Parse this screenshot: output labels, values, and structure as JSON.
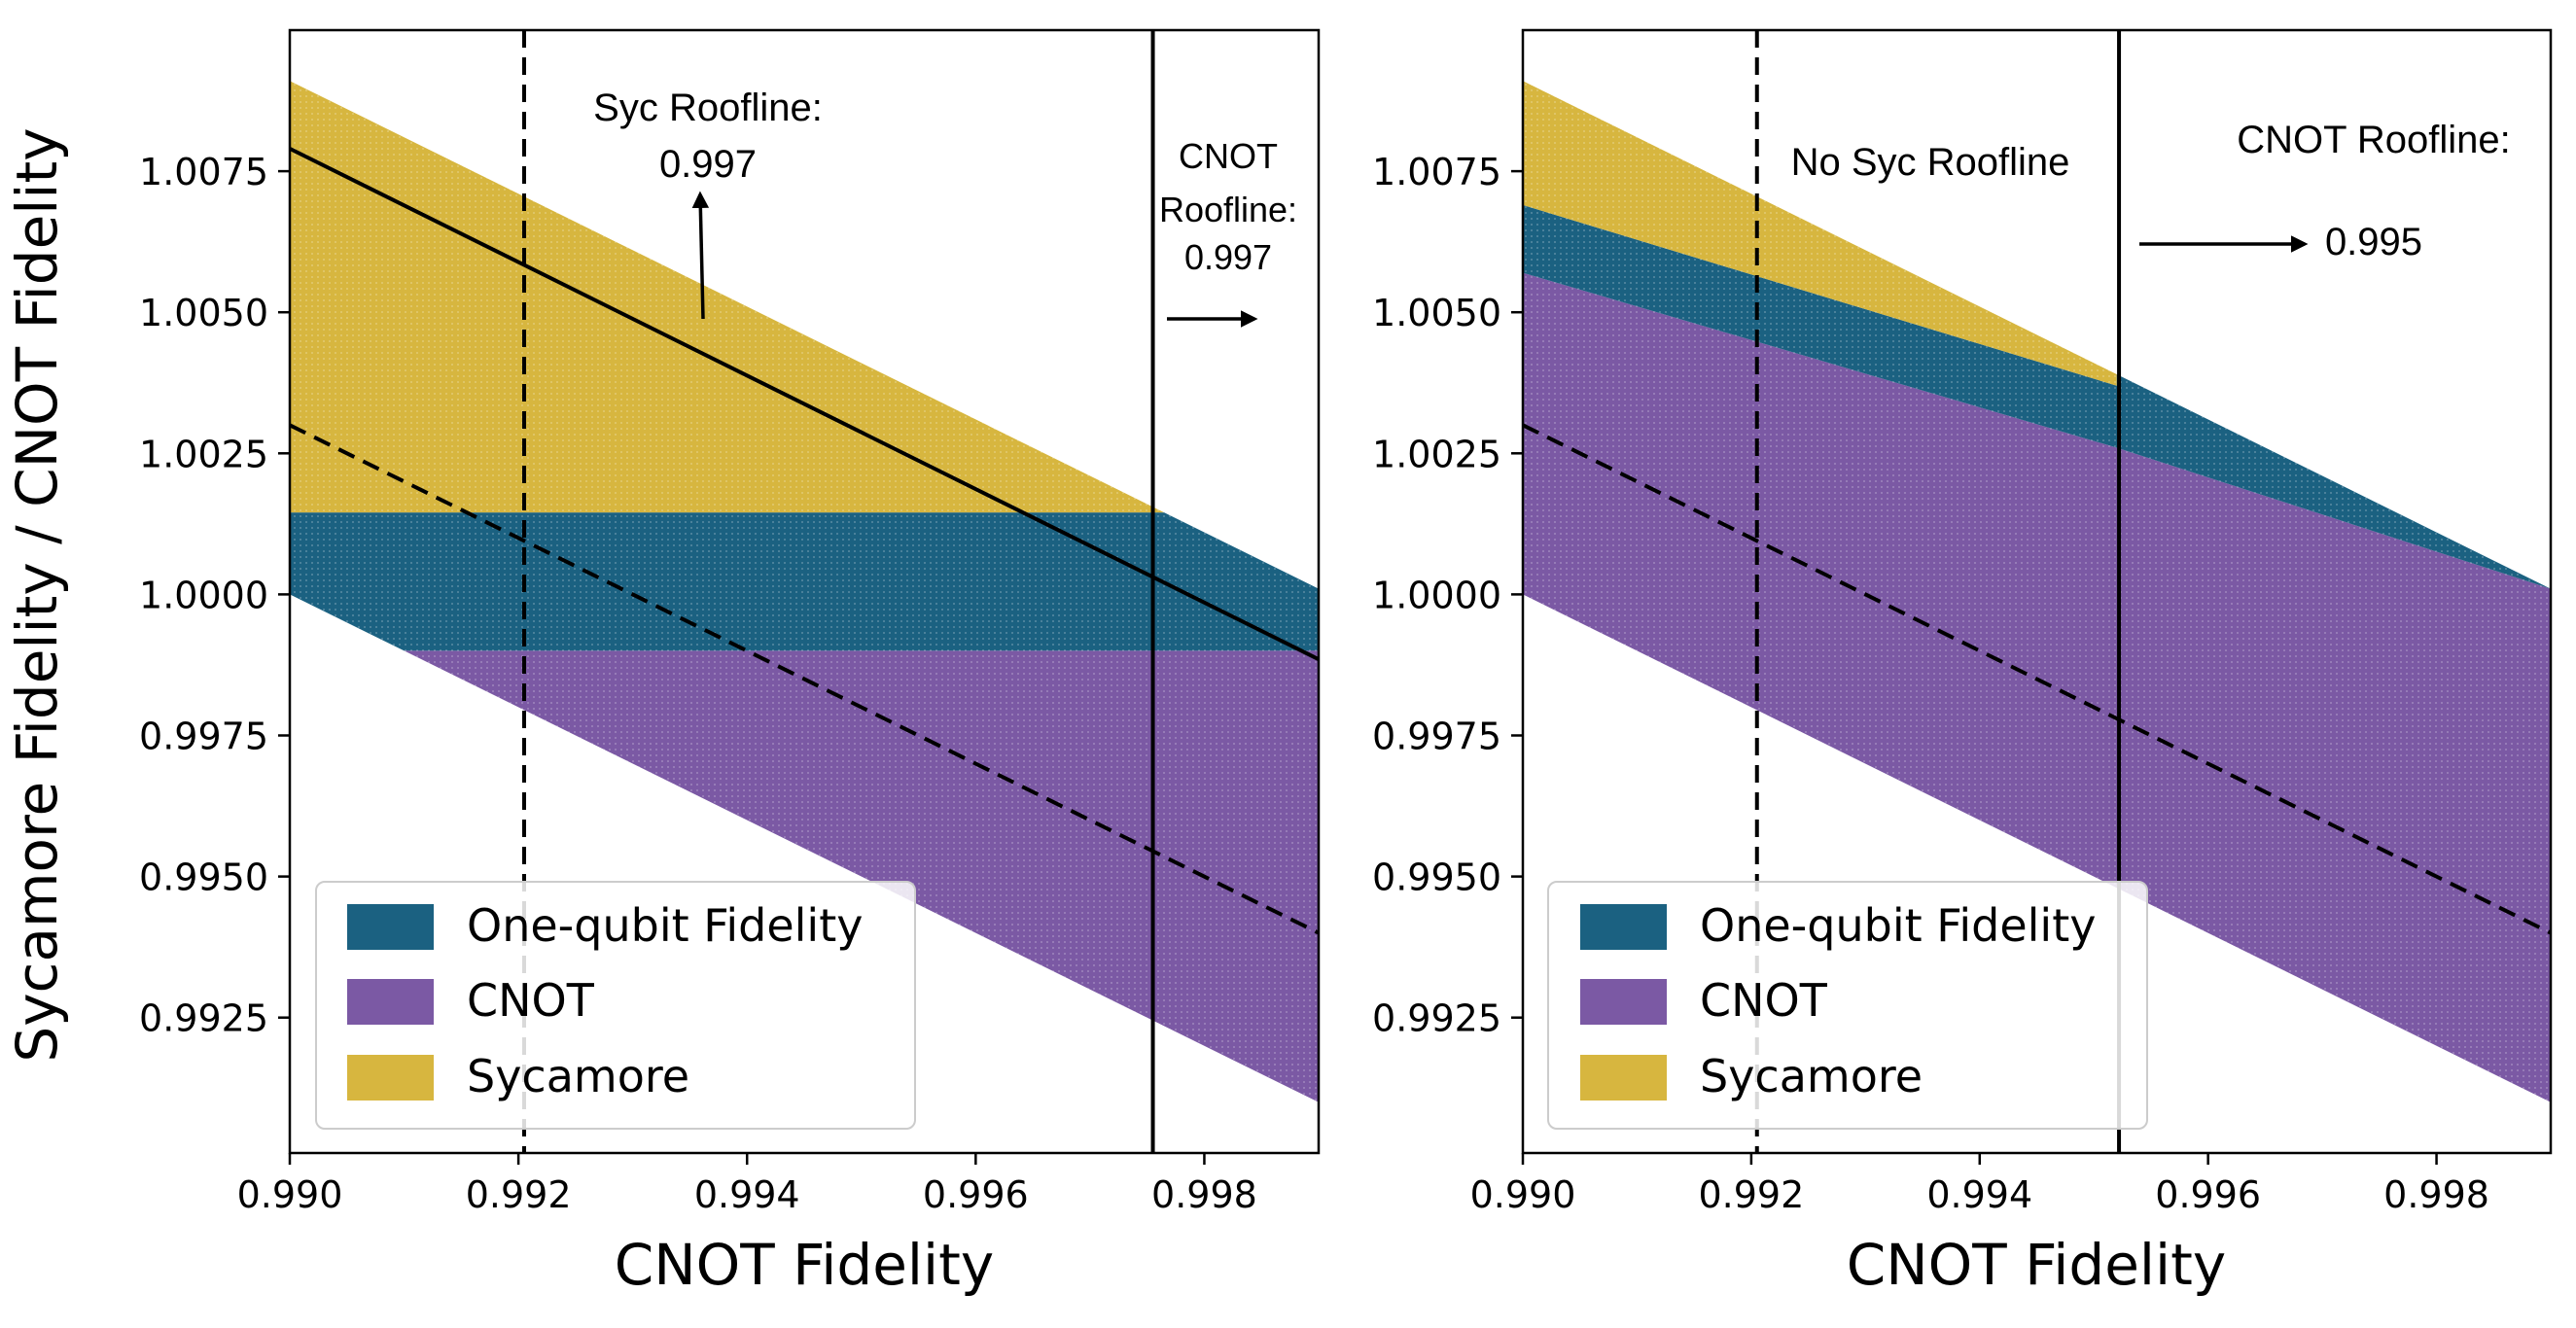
{
  "figure": {
    "ylabel": "Sycamore Fidelity / CNOT Fidelity",
    "colors": {
      "one_qubit": "#1b6181",
      "cnot": "#7b59a4",
      "sycamore": "#d7b63f"
    }
  },
  "chart_data": [
    {
      "type": "area",
      "panel": "left",
      "xlabel": "CNOT Fidelity",
      "ylabel": "Sycamore Fidelity / CNOT Fidelity",
      "xlim": [
        0.99,
        0.999
      ],
      "ylim": [
        0.9901,
        1.01
      ],
      "xticks": [
        "0.990",
        "0.992",
        "0.994",
        "0.996",
        "0.998"
      ],
      "xtick_values": [
        0.99,
        0.992,
        0.994,
        0.996,
        0.998
      ],
      "yticks": [
        "0.9925",
        "0.9950",
        "0.9975",
        "1.0000",
        "1.0025",
        "1.0050",
        "1.0075"
      ],
      "ytick_values": [
        0.9925,
        0.995,
        0.9975,
        1.0,
        1.0025,
        1.005,
        1.0075
      ],
      "band": {
        "lower_at_xmin": 1.0,
        "lower_at_xmax": 0.991,
        "upper_at_xmin": 1.0091,
        "upper_at_xmax": 1.0001
      },
      "regions": {
        "cnot_below": 0.999,
        "sycamore_above": 1.00145
      },
      "lines": [
        {
          "style": "solid",
          "x": [
            0.99,
            0.999
          ],
          "y": [
            1.0079,
            0.99885
          ]
        },
        {
          "style": "dashed",
          "x": [
            0.99,
            0.999
          ],
          "y": [
            1.003,
            0.994
          ]
        }
      ],
      "vlines": [
        {
          "style": "dashed",
          "x": 0.99205
        },
        {
          "style": "solid",
          "x": 0.99755
        }
      ],
      "legend": {
        "position": "lower-left",
        "entries": [
          {
            "label": "One-qubit Fidelity",
            "color": "#1b6181"
          },
          {
            "label": "CNOT",
            "color": "#7b59a4"
          },
          {
            "label": "Sycamore",
            "color": "#d7b63f"
          }
        ]
      },
      "annotations": [
        {
          "lines": [
            "Syc Roofline:",
            "0.997"
          ],
          "arrow": "up"
        },
        {
          "lines": [
            "CNOT",
            "Roofline:",
            "0.997"
          ],
          "arrow": "right"
        }
      ]
    },
    {
      "type": "area",
      "panel": "right",
      "xlabel": "CNOT Fidelity",
      "ylabel": "",
      "xlim": [
        0.99,
        0.999
      ],
      "ylim": [
        0.9901,
        1.01
      ],
      "xticks": [
        "0.990",
        "0.992",
        "0.994",
        "0.996",
        "0.998"
      ],
      "xtick_values": [
        0.99,
        0.992,
        0.994,
        0.996,
        0.998
      ],
      "yticks": [
        "0.9925",
        "0.9950",
        "0.9975",
        "1.0000",
        "1.0025",
        "1.0050",
        "1.0075"
      ],
      "ytick_values": [
        0.9925,
        0.995,
        0.9975,
        1.0,
        1.0025,
        1.005,
        1.0075
      ],
      "band": {
        "lower_at_xmin": 1.0,
        "lower_at_xmax": 0.991,
        "upper_at_xmin": 1.0091,
        "upper_at_xmax": 1.0001
      },
      "boundaries": {
        "one_qubit_lower": {
          "x": [
            0.99,
            0.9952,
            0.999
          ],
          "y": [
            1.0057,
            1.0026,
            1.0001
          ]
        },
        "sycamore_lower": {
          "x": [
            0.99,
            0.9952
          ],
          "y": [
            1.0069,
            1.0037
          ]
        }
      },
      "lines": [
        {
          "style": "dashed",
          "x": [
            0.99,
            0.999
          ],
          "y": [
            1.003,
            0.994
          ]
        }
      ],
      "vlines": [
        {
          "style": "dashed",
          "x": 0.99205
        },
        {
          "style": "solid",
          "x": 0.99522
        }
      ],
      "legend": {
        "position": "lower-left",
        "entries": [
          {
            "label": "One-qubit Fidelity",
            "color": "#1b6181"
          },
          {
            "label": "CNOT",
            "color": "#7b59a4"
          },
          {
            "label": "Sycamore",
            "color": "#d7b63f"
          }
        ]
      },
      "annotations": [
        {
          "lines": [
            "No Syc Roofline"
          ],
          "arrow": "none"
        },
        {
          "lines": [
            "CNOT Roofline:",
            "0.995"
          ],
          "arrow": "right"
        }
      ]
    }
  ]
}
